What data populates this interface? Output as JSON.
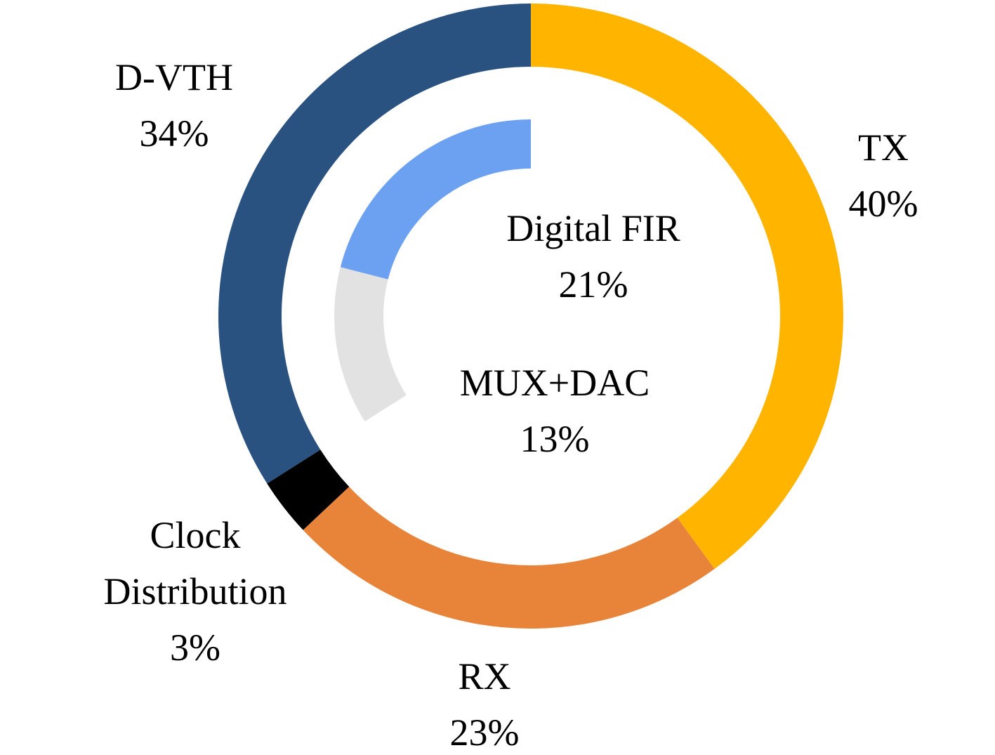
{
  "chart_data": {
    "type": "donut",
    "rings": [
      {
        "categories": [
          "TX",
          "RX",
          "Clock Distribution",
          "D-VTH"
        ],
        "values": [
          40,
          23,
          3,
          34
        ],
        "value_labels": [
          "40%",
          "23%",
          "3%",
          "34%"
        ],
        "colors": [
          "#ffb400",
          "#e8833a",
          "#000000",
          "#2a5280"
        ]
      },
      {
        "categories": [
          "Digital FIR",
          "MUX+DAC"
        ],
        "values": [
          21,
          13
        ],
        "value_labels": [
          "21%",
          "13%"
        ],
        "colors": [
          "#6ca0f0",
          "#e2e2e2"
        ]
      }
    ]
  }
}
